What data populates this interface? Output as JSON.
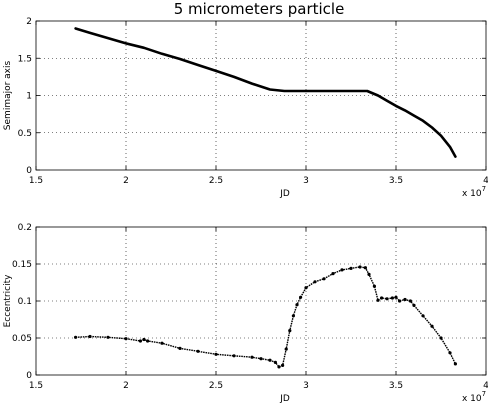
{
  "figure": {
    "title": "5 micrometers particle",
    "x_multiplier_base": "x 10",
    "x_multiplier_exp": "7"
  },
  "chart_data": [
    {
      "type": "line",
      "title": "5 micrometers particle",
      "xlabel": "JD",
      "ylabel": "Semimajor axis",
      "xlim": [
        1.5,
        4
      ],
      "ylim": [
        0,
        2
      ],
      "x_scale_note": "x 10^7",
      "grid": true,
      "xticks": [
        "1.5",
        "2",
        "2.5",
        "3",
        "3.5",
        "4"
      ],
      "yticks": [
        "0",
        "0.5",
        "1",
        "1.5",
        "2"
      ],
      "series": [
        {
          "x": [
            1.72,
            1.8,
            1.9,
            2.0,
            2.1,
            2.2,
            2.3,
            2.4,
            2.5,
            2.6,
            2.7,
            2.8,
            2.88,
            2.95,
            3.05,
            3.15,
            3.25,
            3.34,
            3.4,
            3.45,
            3.5,
            3.55,
            3.6,
            3.65,
            3.7,
            3.75,
            3.8,
            3.83
          ],
          "y": [
            1.9,
            1.84,
            1.77,
            1.7,
            1.64,
            1.56,
            1.49,
            1.41,
            1.33,
            1.25,
            1.16,
            1.08,
            1.06,
            1.06,
            1.06,
            1.06,
            1.06,
            1.06,
            1.0,
            0.93,
            0.86,
            0.8,
            0.73,
            0.66,
            0.57,
            0.46,
            0.31,
            0.18
          ]
        }
      ]
    },
    {
      "type": "scatter",
      "xlabel": "JD",
      "ylabel": "Eccentricity",
      "xlim": [
        1.5,
        4
      ],
      "ylim": [
        0,
        0.2
      ],
      "x_scale_note": "x 10^7",
      "grid": true,
      "xticks": [
        "1.5",
        "2",
        "2.5",
        "3",
        "3.5",
        "4"
      ],
      "yticks": [
        "0",
        "0.05",
        "0.1",
        "0.15",
        "0.2"
      ],
      "series": [
        {
          "x": [
            1.72,
            1.8,
            1.9,
            2.0,
            2.08,
            2.1,
            2.12,
            2.2,
            2.3,
            2.4,
            2.5,
            2.6,
            2.7,
            2.75,
            2.8,
            2.83,
            2.85,
            2.87,
            2.89,
            2.91,
            2.93,
            2.95,
            2.97,
            3.0,
            3.05,
            3.1,
            3.15,
            3.2,
            3.25,
            3.3,
            3.33,
            3.35,
            3.38,
            3.4,
            3.42,
            3.45,
            3.48,
            3.5,
            3.52,
            3.55,
            3.58,
            3.6,
            3.65,
            3.7,
            3.75,
            3.8,
            3.83
          ],
          "y": [
            0.051,
            0.052,
            0.051,
            0.049,
            0.046,
            0.048,
            0.046,
            0.043,
            0.036,
            0.032,
            0.028,
            0.026,
            0.024,
            0.022,
            0.02,
            0.017,
            0.011,
            0.013,
            0.035,
            0.06,
            0.08,
            0.095,
            0.105,
            0.118,
            0.126,
            0.13,
            0.137,
            0.142,
            0.144,
            0.146,
            0.145,
            0.136,
            0.12,
            0.101,
            0.104,
            0.103,
            0.104,
            0.105,
            0.1,
            0.102,
            0.1,
            0.094,
            0.08,
            0.066,
            0.05,
            0.03,
            0.015
          ]
        }
      ]
    }
  ]
}
